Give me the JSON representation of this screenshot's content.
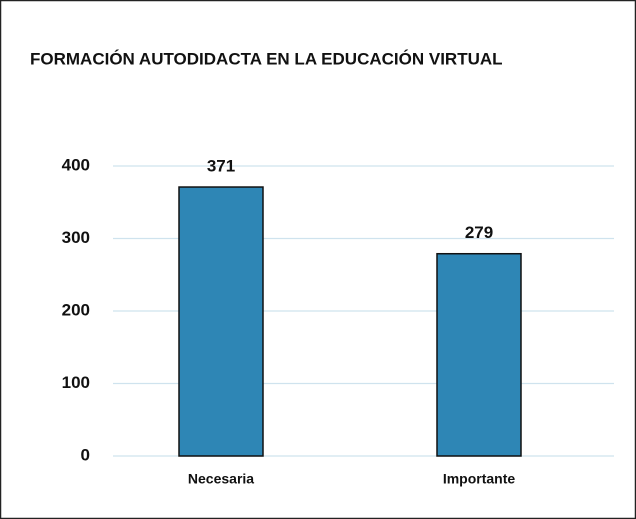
{
  "chart_data": {
    "type": "bar",
    "title": "FORMACIÓN AUTODIDACTA EN LA EDUCACIÓN VIRTUAL",
    "categories": [
      "Necesaria",
      "Importante"
    ],
    "values": [
      371,
      279
    ],
    "color": "#2e86b5",
    "ylim": [
      0,
      400
    ],
    "yticks": [
      0,
      100,
      200,
      300,
      400
    ],
    "grid": true
  }
}
